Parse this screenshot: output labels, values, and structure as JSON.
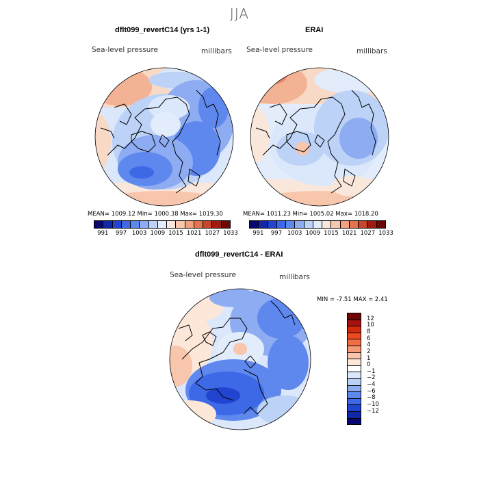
{
  "season": "JJA",
  "panels": {
    "model": {
      "title": "dflt099_revertC14 (yrs 1-1)",
      "variable": "Sea-level pressure",
      "units": "millibars",
      "stats": "MEAN= 1009.12   Min= 1000.38   Max= 1019.30"
    },
    "obs": {
      "title": "ERAI",
      "variable": "Sea-level pressure",
      "units": "millibars",
      "stats": "MEAN= 1011.23   Min= 1005.02   Max= 1018.20"
    },
    "diff": {
      "title": "dflt099_revertC14 - ERAI",
      "variable": "Sea-level pressure",
      "units": "millibars",
      "stats": "MIN =   -7.51 MAX =    2.41"
    }
  },
  "colorbar_abs": {
    "colors": [
      "#08086e",
      "#1027a8",
      "#2245d1",
      "#3d68e6",
      "#5f88ee",
      "#8eacf2",
      "#bcd2f6",
      "#e2ecfa",
      "#fae7db",
      "#f7c6ac",
      "#f0a180",
      "#e2754f",
      "#c8452a",
      "#a11b11",
      "#6e0606"
    ],
    "ticks": [
      "991",
      "997",
      "1003",
      "1009",
      "1015",
      "1021",
      "1027",
      "1033"
    ]
  },
  "colorbar_diff": {
    "colors": [
      "#6e0606",
      "#a51212",
      "#d52a0e",
      "#ee4a1f",
      "#f26e43",
      "#f39a76",
      "#f7c6ac",
      "#fde7d8",
      "#ffffff",
      "#dbe7fa",
      "#b9d0f6",
      "#8eacf2",
      "#5f88ee",
      "#3d68e6",
      "#2245d1",
      "#1027a8",
      "#08086e"
    ],
    "labels": [
      "12",
      "10",
      "8",
      "6",
      "4",
      "2",
      "1",
      "0",
      "−1",
      "−2",
      "−4",
      "−6",
      "−8",
      "−10",
      "−12"
    ]
  }
}
